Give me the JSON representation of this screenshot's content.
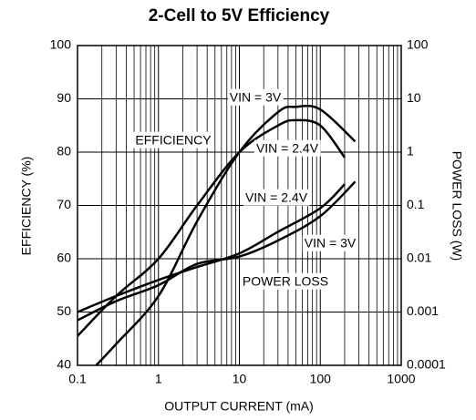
{
  "chart_data": {
    "type": "line",
    "title": "2-Cell to 5V Efficiency",
    "x_label": "OUTPUT CURRENT (mA)",
    "y_label": "EFFICIENCY (%)",
    "y2_label": "POWER LOSS (W)",
    "xlim": [
      0.1,
      1000
    ],
    "xticks": [
      0.1,
      1,
      10,
      100,
      1000
    ],
    "xscale": "log",
    "ylim": [
      40,
      100
    ],
    "yticks": [
      40,
      50,
      60,
      70,
      80,
      90,
      100
    ],
    "y2lim": [
      0.0001,
      100
    ],
    "y2ticks": [
      0.0001,
      0.001,
      0.01,
      0.1,
      1,
      10,
      100
    ],
    "y2scale": "log",
    "grid": true,
    "minor_grid": true,
    "color": "#000000",
    "annotations": [
      "EFFICIENCY",
      "POWER LOSS"
    ],
    "series": [
      {
        "name": "VIN = 3V",
        "x": [
          0.17,
          0.3,
          1,
          3,
          10,
          30,
          50,
          100,
          270
        ],
        "values": [
          40,
          44,
          53,
          67,
          80,
          87.5,
          88.5,
          88,
          82
        ]
      },
      {
        "name": "VIN = 2.4V",
        "x": [
          0.1,
          0.3,
          1,
          3,
          10,
          30,
          50,
          100,
          200
        ],
        "values": [
          45.5,
          53,
          60,
          70,
          80,
          85,
          86,
          85,
          79
        ]
      },
      {
        "name": "VIN = 2.4V",
        "axis": "y2",
        "x": [
          0.1,
          0.3,
          1,
          3,
          10,
          30,
          100,
          200
        ],
        "values": [
          0.001,
          0.002,
          0.004,
          0.007,
          0.0126,
          0.032,
          0.089,
          0.25
        ]
      },
      {
        "name": "VIN = 3V",
        "axis": "y2",
        "x": [
          0.1,
          0.3,
          1,
          3,
          10,
          30,
          100,
          270
        ],
        "values": [
          0.0007,
          0.0016,
          0.0032,
          0.008,
          0.011,
          0.022,
          0.063,
          0.28
        ]
      }
    ]
  }
}
